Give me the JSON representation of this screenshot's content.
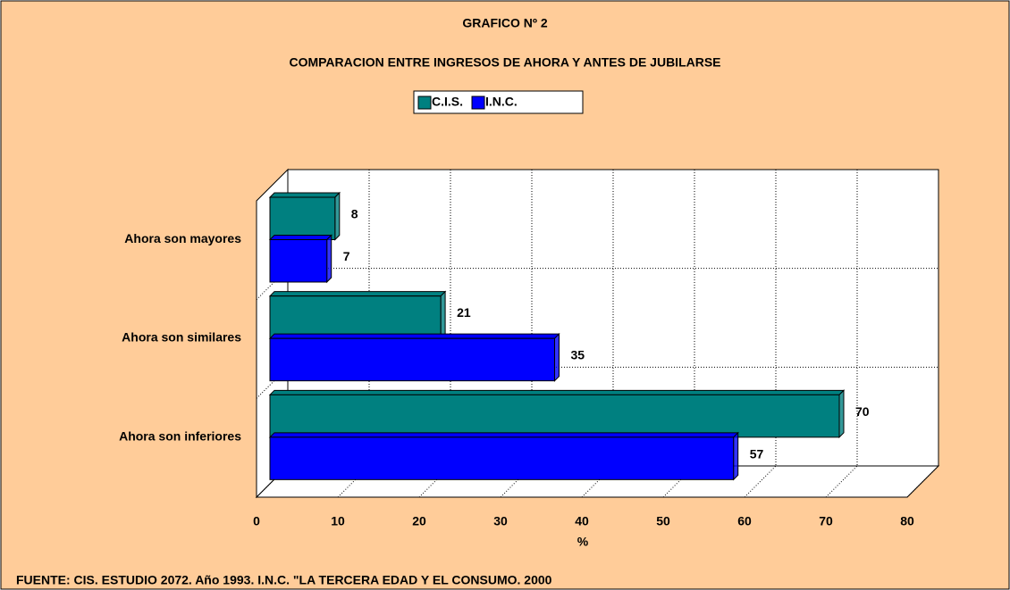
{
  "chart_data": {
    "type": "hbar3d",
    "title": "GRAFICO Nº 2",
    "subtitle": "COMPARACION ENTRE INGRESOS DE AHORA Y ANTES DE JUBILARSE",
    "categories": [
      "Ahora son mayores",
      "Ahora son similares",
      "Ahora son inferiores"
    ],
    "series": [
      {
        "name": "C.I.S.",
        "color": "#008080",
        "values": [
          8,
          21,
          70
        ]
      },
      {
        "name": "I.N.C.",
        "color": "#0000ff",
        "values": [
          7,
          35,
          57
        ]
      }
    ],
    "xlim": [
      0,
      80
    ],
    "xticks": [
      0,
      10,
      20,
      30,
      40,
      50,
      60,
      70,
      80
    ],
    "x_label": "%",
    "grid": true,
    "legend": "top",
    "source": "FUENTE: CIS. ESTUDIO 2072. Año 1993. I.N.C. \"LA TERCERA EDAD Y EL CONSUMO. 2000"
  }
}
